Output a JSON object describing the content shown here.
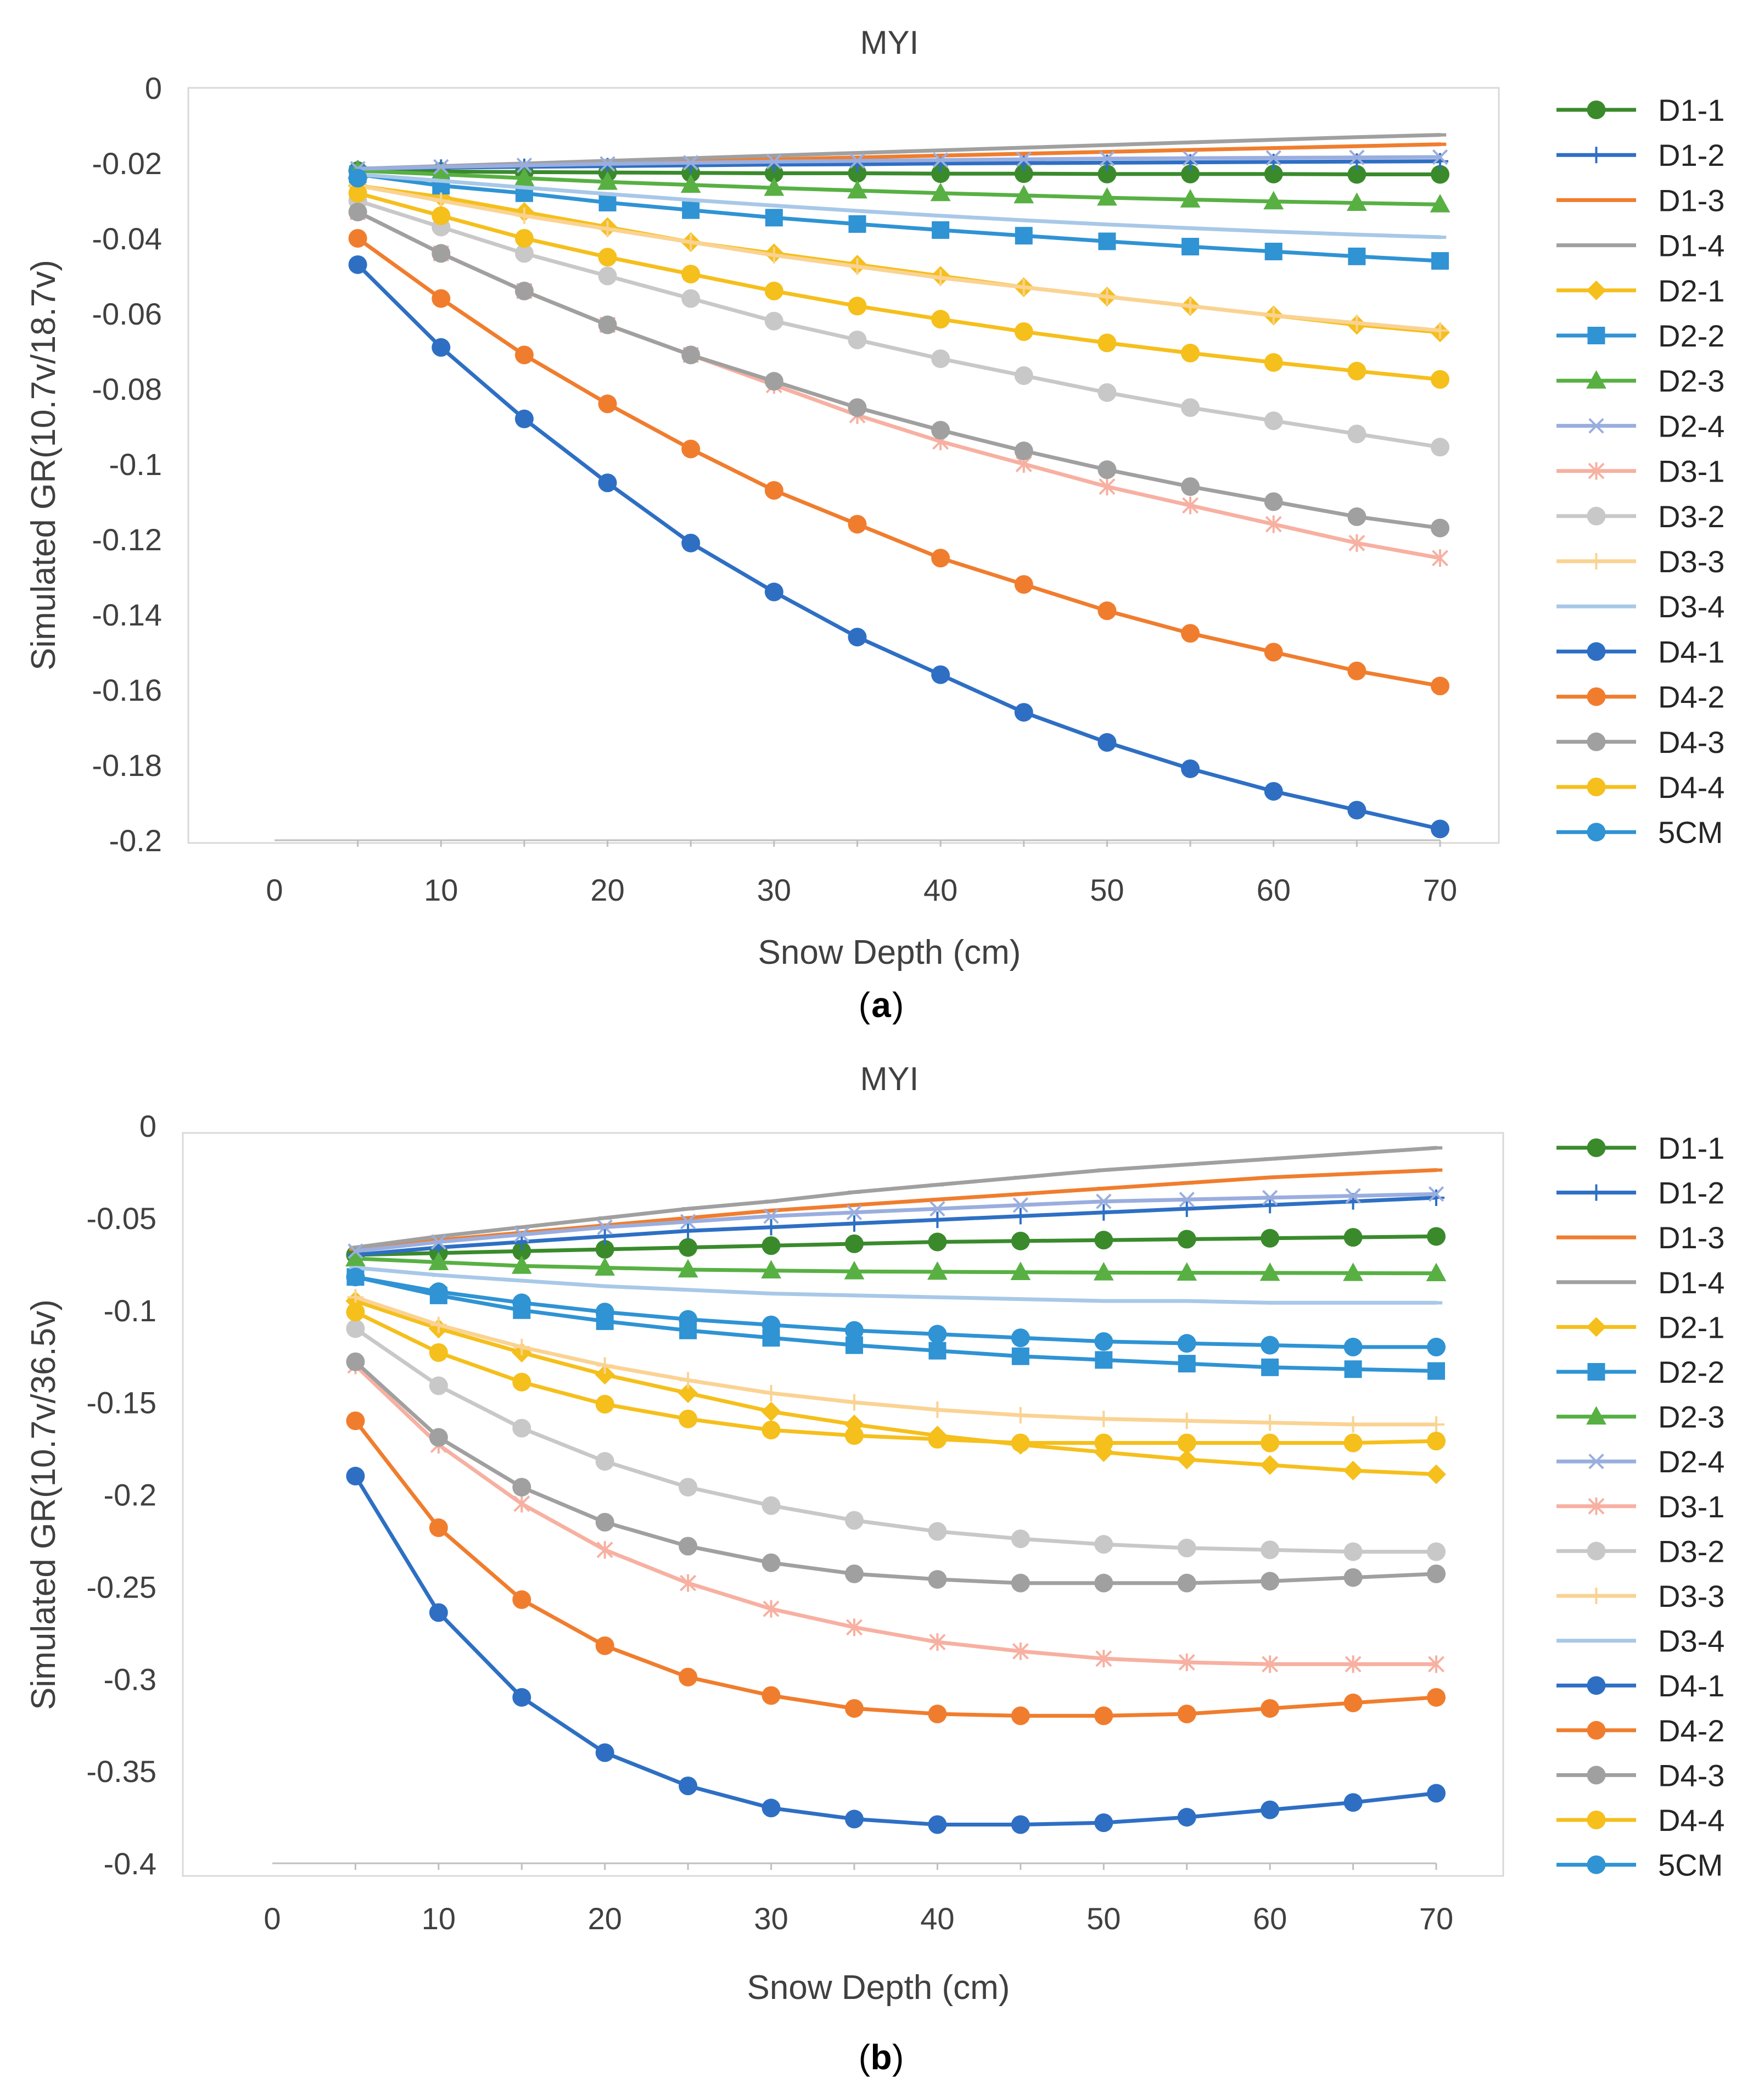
{
  "chart_data": [
    {
      "type": "line",
      "title": "MYI",
      "xlabel": "Snow Depth (cm)",
      "ylabel": "Simulated GR(10.7v/18.7v)",
      "caption_letter": "a",
      "xlim": [
        0,
        70
      ],
      "ylim": [
        -0.2,
        0
      ],
      "xticks": [
        0,
        10,
        20,
        30,
        40,
        50,
        60,
        70
      ],
      "xtick_labels": [
        "0",
        "10",
        "20",
        "30",
        "40",
        "50",
        "60",
        "70"
      ],
      "yticks": [
        0,
        -0.02,
        -0.04,
        -0.06,
        -0.08,
        -0.1,
        -0.12,
        -0.14,
        -0.16,
        -0.18,
        -0.2
      ],
      "ytick_labels": [
        "0",
        "-0.02",
        "-0.04",
        "-0.06",
        "-0.08",
        "-0.1",
        "-0.12",
        "-0.14",
        "-0.16",
        "-0.18",
        "-0.2"
      ],
      "x": [
        5,
        10,
        15,
        20,
        25,
        30,
        35,
        40,
        45,
        50,
        55,
        60,
        65,
        70
      ],
      "legend_position": "right",
      "series": [
        {
          "name": "D1-1",
          "color": "#3a8a2c",
          "marker": "circle",
          "values": [
            -0.022,
            -0.0222,
            -0.0224,
            -0.0225,
            -0.0226,
            -0.0227,
            -0.0227,
            -0.0228,
            -0.0228,
            -0.0229,
            -0.0229,
            -0.0229,
            -0.023,
            -0.023
          ]
        },
        {
          "name": "D1-2",
          "color": "#2e6fc4",
          "marker": "plus",
          "values": [
            -0.0215,
            -0.0212,
            -0.021,
            -0.0208,
            -0.0206,
            -0.0204,
            -0.0203,
            -0.0201,
            -0.02,
            -0.0199,
            -0.0198,
            -0.0197,
            -0.0196,
            -0.0195
          ]
        },
        {
          "name": "D1-3",
          "color": "#f07d2e",
          "marker": "dash",
          "values": [
            -0.0215,
            -0.021,
            -0.0205,
            -0.02,
            -0.0195,
            -0.019,
            -0.0185,
            -0.018,
            -0.0175,
            -0.017,
            -0.0165,
            -0.016,
            -0.0155,
            -0.015
          ]
        },
        {
          "name": "D1-4",
          "color": "#a0a0a0",
          "marker": "dash",
          "values": [
            -0.0215,
            -0.0208,
            -0.0201,
            -0.0194,
            -0.0187,
            -0.018,
            -0.0173,
            -0.0166,
            -0.0159,
            -0.0152,
            -0.0145,
            -0.0138,
            -0.0131,
            -0.0125
          ]
        },
        {
          "name": "D2-1",
          "color": "#f5bf1c",
          "marker": "diamond",
          "values": [
            -0.026,
            -0.029,
            -0.033,
            -0.037,
            -0.041,
            -0.044,
            -0.047,
            -0.05,
            -0.053,
            -0.0555,
            -0.058,
            -0.0605,
            -0.063,
            -0.065
          ]
        },
        {
          "name": "D2-2",
          "color": "#2f93d4",
          "marker": "square",
          "values": [
            -0.023,
            -0.026,
            -0.028,
            -0.0305,
            -0.0325,
            -0.0345,
            -0.0362,
            -0.0378,
            -0.0393,
            -0.0408,
            -0.0422,
            -0.0435,
            -0.0448,
            -0.046
          ]
        },
        {
          "name": "D2-3",
          "color": "#58b043",
          "marker": "triangle",
          "values": [
            -0.022,
            -0.023,
            -0.024,
            -0.025,
            -0.0258,
            -0.0266,
            -0.0273,
            -0.028,
            -0.0286,
            -0.0292,
            -0.0297,
            -0.0302,
            -0.0306,
            -0.031
          ]
        },
        {
          "name": "D2-4",
          "color": "#9aaede",
          "marker": "x",
          "values": [
            -0.0215,
            -0.021,
            -0.0206,
            -0.0202,
            -0.0199,
            -0.0196,
            -0.0194,
            -0.0192,
            -0.019,
            -0.0188,
            -0.0187,
            -0.0186,
            -0.0185,
            -0.0184
          ]
        },
        {
          "name": "D3-1",
          "color": "#f7b0a1",
          "marker": "star",
          "values": [
            -0.033,
            -0.044,
            -0.054,
            -0.063,
            -0.071,
            -0.079,
            -0.087,
            -0.094,
            -0.1,
            -0.106,
            -0.111,
            -0.116,
            -0.121,
            -0.125
          ]
        },
        {
          "name": "D3-2",
          "color": "#c8c8c8",
          "marker": "circle",
          "values": [
            -0.03,
            -0.037,
            -0.044,
            -0.05,
            -0.056,
            -0.062,
            -0.067,
            -0.072,
            -0.0765,
            -0.081,
            -0.085,
            -0.0885,
            -0.092,
            -0.0955
          ]
        },
        {
          "name": "D3-3",
          "color": "#fad393",
          "marker": "plus",
          "values": [
            -0.026,
            -0.03,
            -0.034,
            -0.0375,
            -0.041,
            -0.0445,
            -0.0475,
            -0.0505,
            -0.053,
            -0.0555,
            -0.058,
            -0.0605,
            -0.0625,
            -0.0645
          ]
        },
        {
          "name": "D3-4",
          "color": "#a8c8e8",
          "marker": "dash",
          "values": [
            -0.023,
            -0.0247,
            -0.0265,
            -0.0282,
            -0.0298,
            -0.0313,
            -0.0327,
            -0.034,
            -0.0352,
            -0.0363,
            -0.0373,
            -0.0382,
            -0.039,
            -0.0397
          ]
        },
        {
          "name": "D4-1",
          "color": "#2e6fc4",
          "marker": "circle",
          "values": [
            -0.047,
            -0.069,
            -0.088,
            -0.105,
            -0.121,
            -0.134,
            -0.146,
            -0.156,
            -0.166,
            -0.174,
            -0.181,
            -0.187,
            -0.192,
            -0.197
          ]
        },
        {
          "name": "D4-2",
          "color": "#f07d2e",
          "marker": "circle",
          "values": [
            -0.04,
            -0.056,
            -0.071,
            -0.084,
            -0.096,
            -0.107,
            -0.116,
            -0.125,
            -0.132,
            -0.139,
            -0.145,
            -0.15,
            -0.155,
            -0.159
          ]
        },
        {
          "name": "D4-3",
          "color": "#a0a0a0",
          "marker": "circle",
          "values": [
            -0.033,
            -0.044,
            -0.054,
            -0.063,
            -0.071,
            -0.078,
            -0.085,
            -0.091,
            -0.0965,
            -0.1015,
            -0.106,
            -0.11,
            -0.114,
            -0.117
          ]
        },
        {
          "name": "D4-4",
          "color": "#f5bf1c",
          "marker": "circle",
          "values": [
            -0.028,
            -0.034,
            -0.04,
            -0.045,
            -0.0495,
            -0.054,
            -0.058,
            -0.0615,
            -0.0648,
            -0.0678,
            -0.0705,
            -0.073,
            -0.0753,
            -0.0775
          ]
        },
        {
          "name": "5CM",
          "color": "#2f93d4",
          "marker": "circle",
          "values": [
            -0.024,
            null,
            null,
            null,
            null,
            null,
            null,
            null,
            null,
            null,
            null,
            null,
            null,
            null
          ]
        }
      ]
    },
    {
      "type": "line",
      "title": "MYI",
      "xlabel": "Snow Depth (cm)",
      "ylabel": "Simulated GR(10.7v/36.5v)",
      "caption_letter": "b",
      "xlim": [
        0,
        70
      ],
      "ylim": [
        -0.4,
        0
      ],
      "xticks": [
        0,
        10,
        20,
        30,
        40,
        50,
        60,
        70
      ],
      "xtick_labels": [
        "0",
        "10",
        "20",
        "30",
        "40",
        "50",
        "60",
        "70"
      ],
      "yticks": [
        0,
        -0.05,
        -0.1,
        -0.15,
        -0.2,
        -0.25,
        -0.3,
        -0.35,
        -0.4
      ],
      "ytick_labels": [
        "0",
        "-0.05",
        "-0.1",
        "-0.15",
        "-0.2",
        "-0.25",
        "-0.3",
        "-0.35",
        "-0.4"
      ],
      "x": [
        5,
        10,
        15,
        20,
        25,
        30,
        35,
        40,
        45,
        50,
        55,
        60,
        65,
        70
      ],
      "legend_position": "right",
      "series": [
        {
          "name": "D1-1",
          "color": "#3a8a2c",
          "marker": "circle",
          "values": [
            -0.07,
            -0.069,
            -0.068,
            -0.067,
            -0.066,
            -0.065,
            -0.064,
            -0.063,
            -0.0625,
            -0.062,
            -0.0615,
            -0.061,
            -0.0605,
            -0.06
          ]
        },
        {
          "name": "D1-2",
          "color": "#2e6fc4",
          "marker": "plus",
          "values": [
            -0.07,
            -0.066,
            -0.063,
            -0.06,
            -0.057,
            -0.055,
            -0.053,
            -0.051,
            -0.049,
            -0.047,
            -0.045,
            -0.043,
            -0.041,
            -0.039
          ]
        },
        {
          "name": "D1-3",
          "color": "#f07d2e",
          "marker": "dash",
          "values": [
            -0.067,
            -0.062,
            -0.058,
            -0.054,
            -0.05,
            -0.046,
            -0.043,
            -0.04,
            -0.037,
            -0.034,
            -0.031,
            -0.028,
            -0.026,
            -0.024
          ]
        },
        {
          "name": "D1-4",
          "color": "#a0a0a0",
          "marker": "dash",
          "values": [
            -0.066,
            -0.06,
            -0.055,
            -0.05,
            -0.045,
            -0.041,
            -0.036,
            -0.032,
            -0.028,
            -0.024,
            -0.021,
            -0.018,
            -0.015,
            -0.012
          ]
        },
        {
          "name": "D2-1",
          "color": "#f5bf1c",
          "marker": "diamond",
          "values": [
            -0.095,
            -0.11,
            -0.123,
            -0.135,
            -0.145,
            -0.155,
            -0.162,
            -0.168,
            -0.173,
            -0.177,
            -0.181,
            -0.184,
            -0.187,
            -0.189
          ]
        },
        {
          "name": "D2-2",
          "color": "#2f93d4",
          "marker": "square",
          "values": [
            -0.082,
            -0.092,
            -0.1,
            -0.106,
            -0.111,
            -0.115,
            -0.119,
            -0.122,
            -0.125,
            -0.127,
            -0.129,
            -0.131,
            -0.132,
            -0.133
          ]
        },
        {
          "name": "D2-3",
          "color": "#58b043",
          "marker": "triangle",
          "values": [
            -0.072,
            -0.074,
            -0.076,
            -0.077,
            -0.078,
            -0.0785,
            -0.079,
            -0.0792,
            -0.0794,
            -0.0796,
            -0.0797,
            -0.0798,
            -0.0799,
            -0.08
          ]
        },
        {
          "name": "D2-4",
          "color": "#9aaede",
          "marker": "x",
          "values": [
            -0.068,
            -0.063,
            -0.059,
            -0.055,
            -0.052,
            -0.049,
            -0.047,
            -0.045,
            -0.043,
            -0.041,
            -0.04,
            -0.039,
            -0.038,
            -0.037
          ]
        },
        {
          "name": "D3-1",
          "color": "#f7b0a1",
          "marker": "star",
          "values": [
            -0.13,
            -0.173,
            -0.205,
            -0.23,
            -0.248,
            -0.262,
            -0.272,
            -0.28,
            -0.285,
            -0.289,
            -0.291,
            -0.292,
            -0.292,
            -0.292
          ]
        },
        {
          "name": "D3-2",
          "color": "#c8c8c8",
          "marker": "circle",
          "values": [
            -0.11,
            -0.141,
            -0.164,
            -0.182,
            -0.196,
            -0.206,
            -0.214,
            -0.22,
            -0.224,
            -0.227,
            -0.229,
            -0.23,
            -0.231,
            -0.231
          ]
        },
        {
          "name": "D3-3",
          "color": "#fad393",
          "marker": "plus",
          "values": [
            -0.093,
            -0.108,
            -0.12,
            -0.13,
            -0.138,
            -0.145,
            -0.15,
            -0.154,
            -0.157,
            -0.159,
            -0.16,
            -0.161,
            -0.162,
            -0.162
          ]
        },
        {
          "name": "D3-4",
          "color": "#a8c8e8",
          "marker": "dash",
          "values": [
            -0.077,
            -0.081,
            -0.084,
            -0.087,
            -0.089,
            -0.091,
            -0.092,
            -0.093,
            -0.094,
            -0.095,
            -0.095,
            -0.096,
            -0.096,
            -0.096
          ]
        },
        {
          "name": "D4-1",
          "color": "#2e6fc4",
          "marker": "circle",
          "values": [
            -0.19,
            -0.264,
            -0.31,
            -0.34,
            -0.358,
            -0.37,
            -0.376,
            -0.379,
            -0.379,
            -0.378,
            -0.375,
            -0.371,
            -0.367,
            -0.362
          ]
        },
        {
          "name": "D4-2",
          "color": "#f07d2e",
          "marker": "circle",
          "values": [
            -0.16,
            -0.218,
            -0.257,
            -0.282,
            -0.299,
            -0.309,
            -0.316,
            -0.319,
            -0.32,
            -0.32,
            -0.319,
            -0.316,
            -0.313,
            -0.31
          ]
        },
        {
          "name": "D4-3",
          "color": "#a0a0a0",
          "marker": "circle",
          "values": [
            -0.128,
            -0.169,
            -0.196,
            -0.215,
            -0.228,
            -0.237,
            -0.243,
            -0.246,
            -0.248,
            -0.248,
            -0.248,
            -0.247,
            -0.245,
            -0.243
          ]
        },
        {
          "name": "D4-4",
          "color": "#f5bf1c",
          "marker": "circle",
          "values": [
            -0.101,
            -0.123,
            -0.139,
            -0.151,
            -0.159,
            -0.165,
            -0.168,
            -0.17,
            -0.172,
            -0.172,
            -0.172,
            -0.172,
            -0.172,
            -0.171
          ]
        },
        {
          "name": "5CM",
          "color": "#2f93d4",
          "marker": "circle",
          "values": [
            -0.082,
            -0.09,
            -0.096,
            -0.101,
            -0.105,
            -0.108,
            -0.111,
            -0.113,
            -0.115,
            -0.117,
            -0.118,
            -0.119,
            -0.12,
            -0.12
          ]
        }
      ]
    }
  ]
}
